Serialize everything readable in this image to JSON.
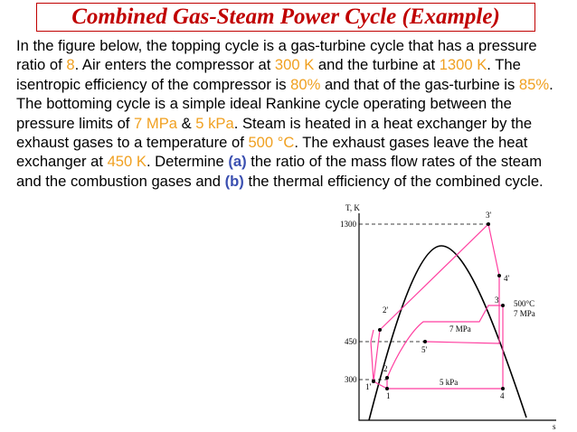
{
  "header": {
    "title": "Combined Gas-Steam Power Cycle (Example)"
  },
  "paragraph": {
    "segments": [
      "In the figure below, the topping cycle is a gas-turbine cycle that has a pressure ratio of ",
      "8",
      ". Air enters the compressor at ",
      "300 K",
      " and the turbine at ",
      "1300 K",
      ". The isentropic efficiency of the compressor is ",
      "80%",
      " and that of the gas-turbine is ",
      "85%",
      ". The bottoming cycle is a simple ideal Rankine cycle operating between the pressure limits of ",
      "7 MPa",
      " & ",
      "5 kPa",
      ". Steam is heated in a heat exchanger by the exhaust gases to a temperature of ",
      "500 °C",
      ". The exhaust gases leave the heat exchanger at ",
      "450 K",
      ". Determine ",
      "(a)",
      " the ratio of the mass flow rates of the steam and the combustion gases and ",
      "(b)",
      " the thermal efficiency of the combined cycle."
    ]
  },
  "diagram": {
    "axis_y": "T, K",
    "axis_x": "s",
    "temperatures": [
      "1300",
      "450",
      "300"
    ],
    "points": [
      "3'",
      "4'",
      "3",
      "4",
      "2'",
      "2",
      "1",
      "1'",
      "5'"
    ],
    "pressures": [
      "7 MPa",
      "5 kPa"
    ],
    "state3": [
      "500°C",
      "7 MPa"
    ]
  }
}
